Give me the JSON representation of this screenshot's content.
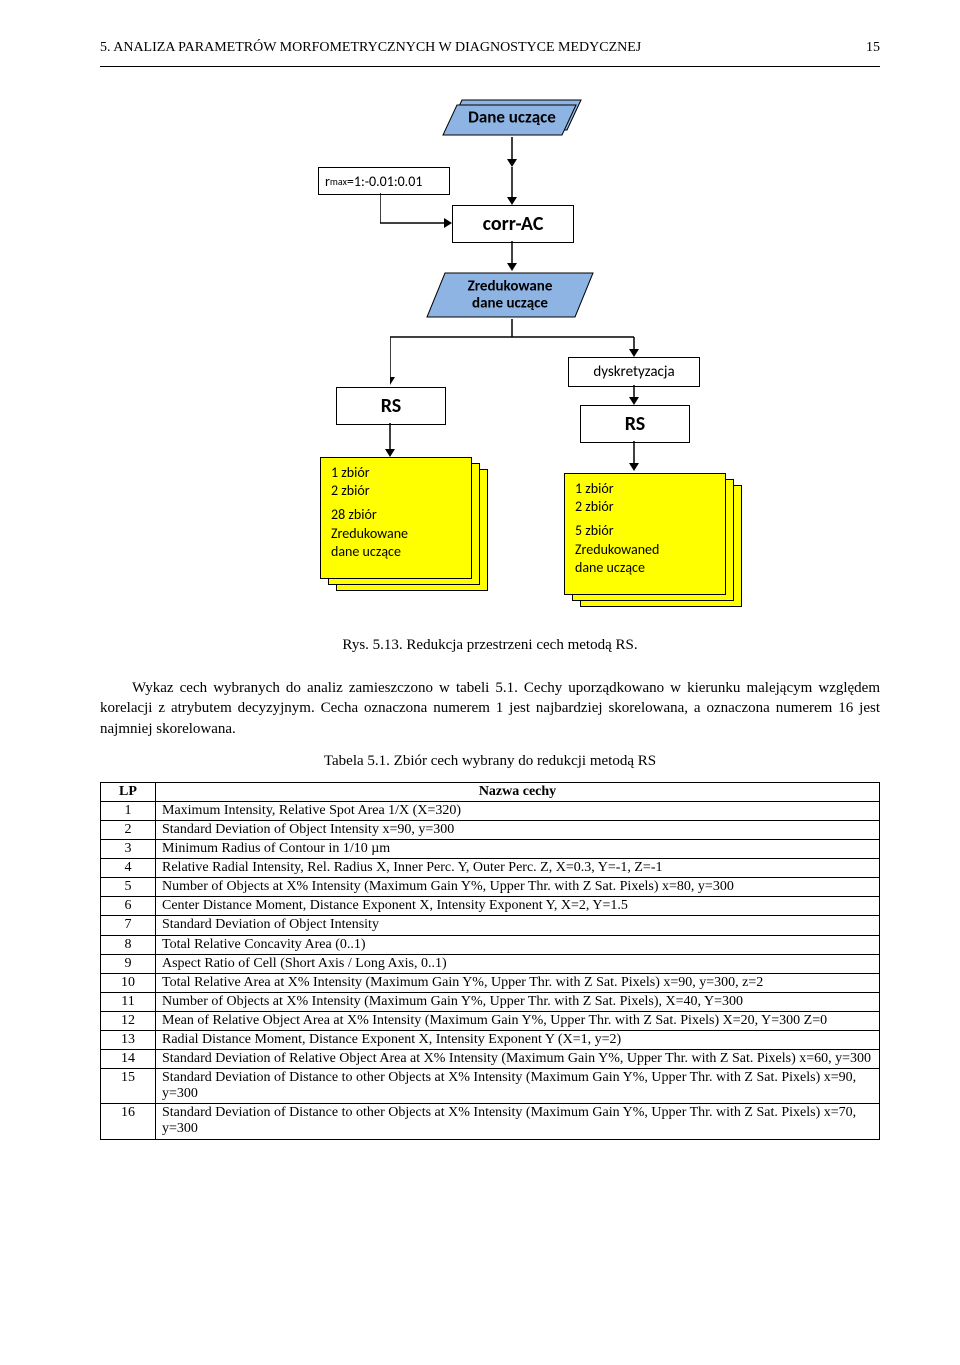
{
  "header": {
    "title": "5. ANALIZA PARAMETRÓW MORFOMETRYCZNYCH W DIAGNOSTYCE MEDYCZNEJ",
    "page_num": "15"
  },
  "flowchart": {
    "colors": {
      "para_fill": "#8eb4e3",
      "stack_fill": "#ffff00",
      "border": "#000000",
      "bg": "#ffffff"
    },
    "nodes": {
      "dane_uczace": "Dane uczące",
      "rmax_prefix": "r",
      "rmax_sub": "max",
      "rmax_rest": "=1:-0.01:0.01",
      "corr_ac": "corr-AC",
      "zredukowane1": "Zredukowane",
      "zredukowane2": "dane uczące",
      "dyskretyzacja": "dyskretyzacja",
      "rs_left": "RS",
      "rs_right": "RS",
      "stack_left_items": [
        "1 zbiór",
        "2 zbiór",
        "",
        "28 zbiór",
        "Zredukowane",
        "dane uczące"
      ],
      "stack_right_items": [
        "1 zbiór",
        "2 zbiór",
        "",
        "5 zbiór",
        "Zredukowaned",
        "dane uczące"
      ]
    }
  },
  "caption1": "Rys. 5.13. Redukcja przestrzeni cech metodą RS.",
  "para1": "Wykaz cech wybranych do analiz zamieszczono w tabeli 5.1. Cechy uporządkowano w kierunku malejącym względem korelacji z atrybutem decyzyjnym. Cecha oznaczona numerem 1 jest najbardziej skorelowana, a oznaczona numerem 16 jest najmniej skorelowana.",
  "table_caption": "Tabela 5.1. Zbiór cech wybrany do redukcji metodą RS",
  "table": {
    "header_lp": "LP",
    "header_name": "Nazwa cechy",
    "rows": [
      {
        "lp": "1",
        "name": "Maximum Intensity, Relative Spot Area 1/X  (X=320)"
      },
      {
        "lp": "2",
        "name": "Standard Deviation of Object Intensity x=90, y=300"
      },
      {
        "lp": "3",
        "name": "Minimum Radius of Contour in 1/10 µm"
      },
      {
        "lp": "4",
        "name": "Relative Radial Intensity, Rel. Radius X, Inner Perc. Y, Outer Perc. Z, X=0.3, Y=-1, Z=-1"
      },
      {
        "lp": "5",
        "name": "Number of Objects at X% Intensity (Maximum Gain Y%, Upper Thr. with Z Sat. Pixels) x=80, y=300"
      },
      {
        "lp": "6",
        "name": " Center Distance Moment, Distance Exponent X, Intensity Exponent Y, X=2, Y=1.5"
      },
      {
        "lp": "7",
        "name": "Standard Deviation of Object Intensity"
      },
      {
        "lp": "8",
        "name": "Total Relative Concavity Area (0..1)"
      },
      {
        "lp": "9",
        "name": "Aspect Ratio of Cell (Short Axis / Long Axis, 0..1)"
      },
      {
        "lp": "10",
        "name": "Total Relative Area at X% Intensity (Maximum Gain Y%, Upper Thr. with Z Sat. Pixels) x=90, y=300, z=2"
      },
      {
        "lp": "11",
        "name": "Number of Objects at X% Intensity (Maximum Gain Y%, Upper Thr. with Z Sat. Pixels), X=40, Y=300"
      },
      {
        "lp": "12",
        "name": "Mean of Relative Object Area at X% Intensity (Maximum Gain Y%, Upper Thr. with Z Sat. Pixels) X=20, Y=300 Z=0"
      },
      {
        "lp": "13",
        "name": "Radial Distance Moment, Distance Exponent X, Intensity Exponent Y (X=1, y=2)"
      },
      {
        "lp": "14",
        "name": "Standard Deviation of Relative Object Area at X% Intensity (Maximum Gain Y%, Upper Thr. with Z Sat. Pixels) x=60, y=300"
      },
      {
        "lp": "15",
        "name": "Standard Deviation of Distance to other Objects at X% Intensity (Maximum Gain Y%, Upper Thr. with Z Sat. Pixels) x=90, y=300"
      },
      {
        "lp": "16",
        "name": "Standard Deviation of Distance to other Objects at X% Intensity (Maximum Gain Y%, Upper Thr. with Z Sat. Pixels) x=70, y=300"
      }
    ]
  }
}
